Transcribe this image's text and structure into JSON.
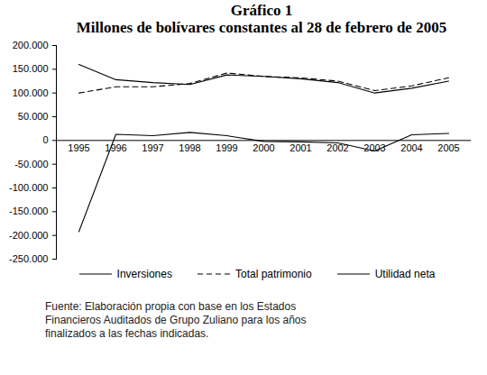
{
  "chart_data": {
    "type": "line",
    "title": "Gráfico 1",
    "subtitle": "Millones de bolívares constantes al 28 de febrero de 2005",
    "source": "Fuente: Elaboración propia con base en los Estados Financieros Auditados de Grupo Zuliano para los años finalizados a las fechas indicadas.",
    "categories": [
      "1995",
      "1996",
      "1997",
      "1998",
      "1999",
      "2000",
      "2001",
      "2002",
      "2003",
      "2004",
      "2005"
    ],
    "series": [
      {
        "name": "Inversiones",
        "color": "#000000",
        "line_style": "solid",
        "values": [
          160000,
          128000,
          122000,
          118000,
          138000,
          135000,
          130000,
          122000,
          100000,
          110000,
          125000
        ]
      },
      {
        "name": "Total patrimonio",
        "color": "#000000",
        "line_style": "dashed",
        "values": [
          100000,
          113000,
          113000,
          120000,
          142000,
          135000,
          132000,
          125000,
          105000,
          115000,
          132000
        ]
      },
      {
        "name": "Utilidad neta",
        "color": "#000000",
        "line_style": "solid",
        "values": [
          -192000,
          13000,
          10000,
          17000,
          10000,
          -2000,
          -3000,
          -5000,
          -22000,
          12000,
          15000
        ]
      }
    ],
    "ylim": [
      -250000,
      200000
    ],
    "yticks": [
      {
        "value": -250000,
        "label": "-250.000"
      },
      {
        "value": -200000,
        "label": "-200.000"
      },
      {
        "value": -150000,
        "label": "-150.000"
      },
      {
        "value": -100000,
        "label": "-100.000"
      },
      {
        "value": -50000,
        "label": "-50.000"
      },
      0,
      {
        "value": 50000,
        "label": "50.000"
      },
      {
        "value": 100000,
        "label": "100.000"
      },
      {
        "value": 150000,
        "label": "150.000"
      },
      {
        "value": 200000,
        "label": "200.000"
      }
    ],
    "grid": false,
    "legend": "bottom"
  }
}
